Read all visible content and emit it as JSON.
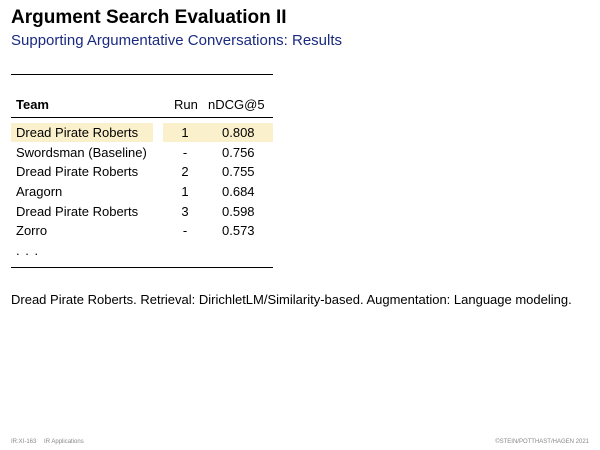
{
  "slide": {
    "title": "Argument Search Evaluation II",
    "subtitle": "Supporting Argumentative Conversations: Results"
  },
  "table": {
    "headers": {
      "team": "Team",
      "run": "Run",
      "ndcg": "nDCG@5"
    },
    "rows": [
      {
        "team": "Dread Pirate Roberts",
        "run": "1",
        "ndcg": "0.808",
        "highlighted": true
      },
      {
        "team": "Swordsman (Baseline)",
        "run": "-",
        "ndcg": "0.756",
        "highlighted": false
      },
      {
        "team": "Dread Pirate Roberts",
        "run": "2",
        "ndcg": "0.755",
        "highlighted": false
      },
      {
        "team": "Aragorn",
        "run": "1",
        "ndcg": "0.684",
        "highlighted": false
      },
      {
        "team": "Dread Pirate Roberts",
        "run": "3",
        "ndcg": "0.598",
        "highlighted": false
      },
      {
        "team": "Zorro",
        "run": "-",
        "ndcg": "0.573",
        "highlighted": false
      }
    ],
    "ellipsis": ". . .",
    "highlight_color": "#fbf0cc"
  },
  "caption": "Dread Pirate Roberts. Retrieval: DirichletLM/Similarity-based. Augmentation: Language modeling.",
  "footer": {
    "page": "IR:XI-163",
    "section": "IR Applications",
    "copyright": "©STEIN/POTTHAST/HAGEN 2021"
  }
}
